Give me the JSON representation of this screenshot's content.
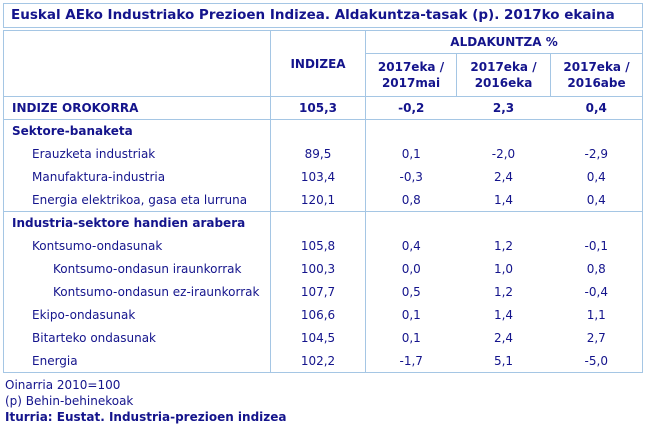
{
  "title": "Euskal AEko Industriako Prezioen Indizea. Aldakuntza-tasak (p). 2017ko ekaina",
  "table": {
    "index_col_header": "INDIZEA",
    "change_group_header": "ALDAKUNTZA %",
    "period_headers": [
      "2017eka / 2017mai",
      "2017eka / 2016eka",
      "2017eka / 2016abe"
    ],
    "rows": [
      {
        "label": "INDIZE OROKORRA",
        "values": [
          "105,3",
          "-0,2",
          "2,3",
          "0,4"
        ]
      },
      {
        "label": "Sektore-banaketa",
        "values": [
          "",
          "",
          "",
          ""
        ]
      },
      {
        "label": "Erauzketa industriak",
        "values": [
          "89,5",
          "0,1",
          "-2,0",
          "-2,9"
        ]
      },
      {
        "label": "Manufaktura-industria",
        "values": [
          "103,4",
          "-0,3",
          "2,4",
          "0,4"
        ]
      },
      {
        "label": "Energia elektrikoa, gasa eta lurruna",
        "values": [
          "120,1",
          "0,8",
          "1,4",
          "0,4"
        ]
      },
      {
        "label": "Industria-sektore handien arabera",
        "values": [
          "",
          "",
          "",
          ""
        ]
      },
      {
        "label": "Kontsumo-ondasunak",
        "values": [
          "105,8",
          "0,4",
          "1,2",
          "-0,1"
        ]
      },
      {
        "label": "Kontsumo-ondasun iraunkorrak",
        "values": [
          "100,3",
          "0,0",
          "1,0",
          "0,8"
        ]
      },
      {
        "label": "Kontsumo-ondasun ez-iraunkorrak",
        "values": [
          "107,7",
          "0,5",
          "1,2",
          "-0,4"
        ]
      },
      {
        "label": "Ekipo-ondasunak",
        "values": [
          "106,6",
          "0,1",
          "1,4",
          "1,1"
        ]
      },
      {
        "label": "Bitarteko ondasunak",
        "values": [
          "104,5",
          "0,1",
          "2,4",
          "2,7"
        ]
      },
      {
        "label": "Energia",
        "values": [
          "102,2",
          "-1,7",
          "5,1",
          "-5,0"
        ]
      }
    ]
  },
  "footer": {
    "base_note": "Oinarria 2010=100",
    "provisional_note": "(p) Behin-behinekoak",
    "source": "Iturria: Eustat. Industria-prezioen indizea"
  },
  "colors": {
    "text_navy": "#14148C",
    "border_light_blue": "#A5C6E4",
    "background": "#FFFFFF"
  }
}
